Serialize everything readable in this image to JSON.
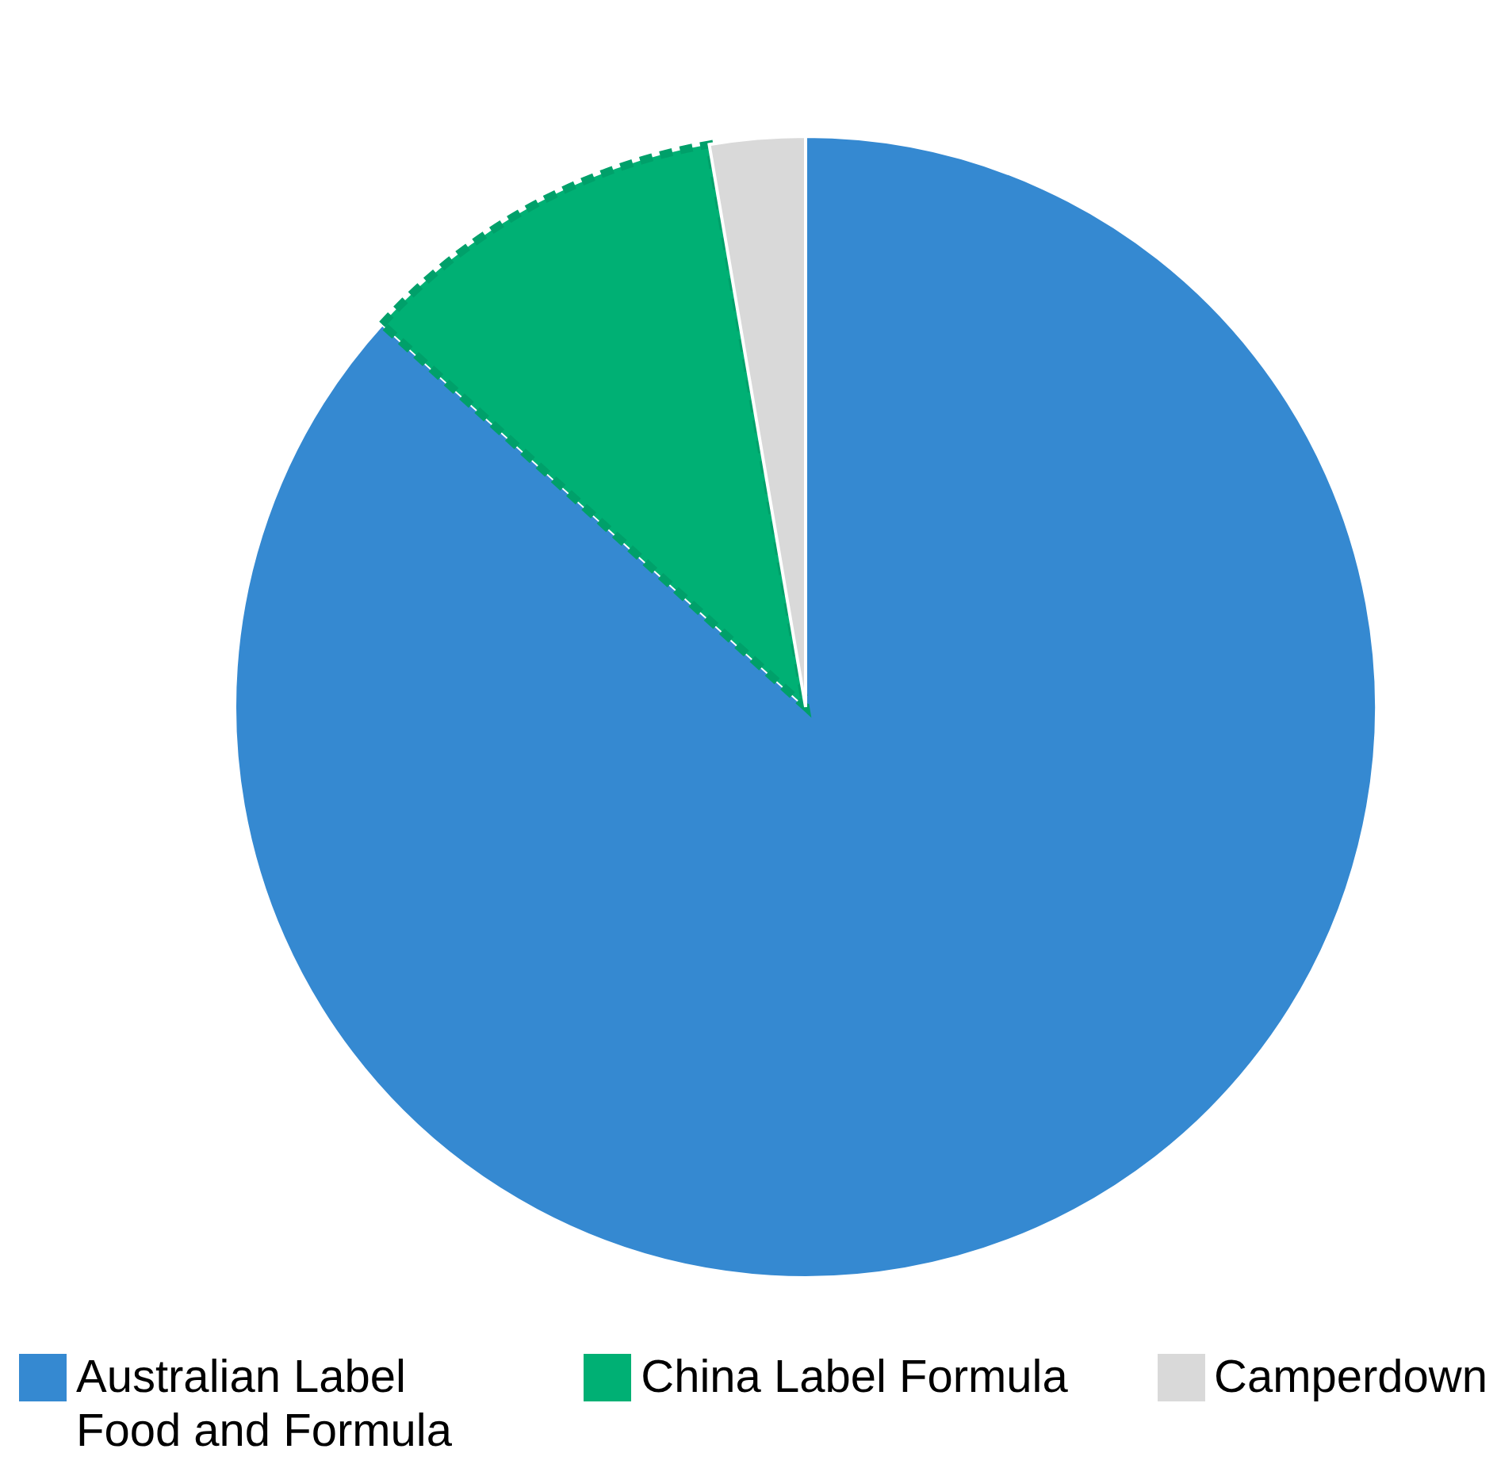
{
  "chart_data": {
    "type": "pie",
    "categories": [
      "Australian Label Food and Formula",
      "China Label Formula",
      "Camperdown"
    ],
    "values": [
      86.7,
      10.6,
      2.7
    ],
    "colors": [
      "#3589d1",
      "#00b074",
      "#d9d9d9"
    ],
    "legend": "bottom"
  }
}
